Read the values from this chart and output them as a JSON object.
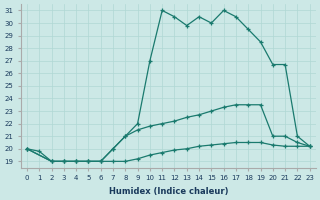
{
  "xlabel": "Humidex (Indice chaleur)",
  "bg_color": "#cce8e6",
  "grid_color": "#b0d8d4",
  "line_color": "#1a7a6e",
  "xlim": [
    -0.5,
    23.5
  ],
  "ylim": [
    18.5,
    31.5
  ],
  "xticks": [
    0,
    1,
    2,
    3,
    4,
    5,
    6,
    7,
    8,
    9,
    10,
    11,
    12,
    13,
    14,
    15,
    16,
    17,
    18,
    19,
    20,
    21,
    22,
    23
  ],
  "yticks": [
    19,
    20,
    21,
    22,
    23,
    24,
    25,
    26,
    27,
    28,
    29,
    30,
    31
  ],
  "line1_x": [
    0,
    2,
    3,
    4,
    5,
    6,
    7,
    8,
    9,
    10,
    11,
    12,
    13,
    14,
    15,
    16,
    17,
    18,
    19,
    20,
    21,
    22,
    23
  ],
  "line1_y": [
    20,
    19,
    19,
    19,
    19,
    19,
    20,
    21,
    22,
    27,
    31,
    30.5,
    29.8,
    30.5,
    30,
    31,
    30.5,
    29.5,
    28.5,
    26.7,
    26.7,
    21,
    20.2
  ],
  "line2_x": [
    0,
    2,
    3,
    4,
    5,
    6,
    7,
    8,
    9,
    10,
    11,
    12,
    13,
    14,
    15,
    16,
    17,
    18,
    19,
    20,
    21,
    22,
    23
  ],
  "line2_y": [
    20,
    19,
    19,
    19,
    19,
    19,
    20,
    21,
    21.5,
    21.8,
    22,
    22.2,
    22.5,
    22.7,
    23.0,
    23.3,
    23.5,
    23.5,
    23.5,
    21,
    21,
    20.5,
    20.2
  ],
  "line3_x": [
    0,
    1,
    2,
    3,
    4,
    5,
    6,
    7,
    8,
    9,
    10,
    11,
    12,
    13,
    14,
    15,
    16,
    17,
    18,
    19,
    20,
    21,
    22,
    23
  ],
  "line3_y": [
    20,
    19.8,
    19,
    19,
    19,
    19,
    19,
    19,
    19,
    19.2,
    19.5,
    19.7,
    19.9,
    20.0,
    20.2,
    20.3,
    20.4,
    20.5,
    20.5,
    20.5,
    20.3,
    20.2,
    20.2,
    20.2
  ]
}
